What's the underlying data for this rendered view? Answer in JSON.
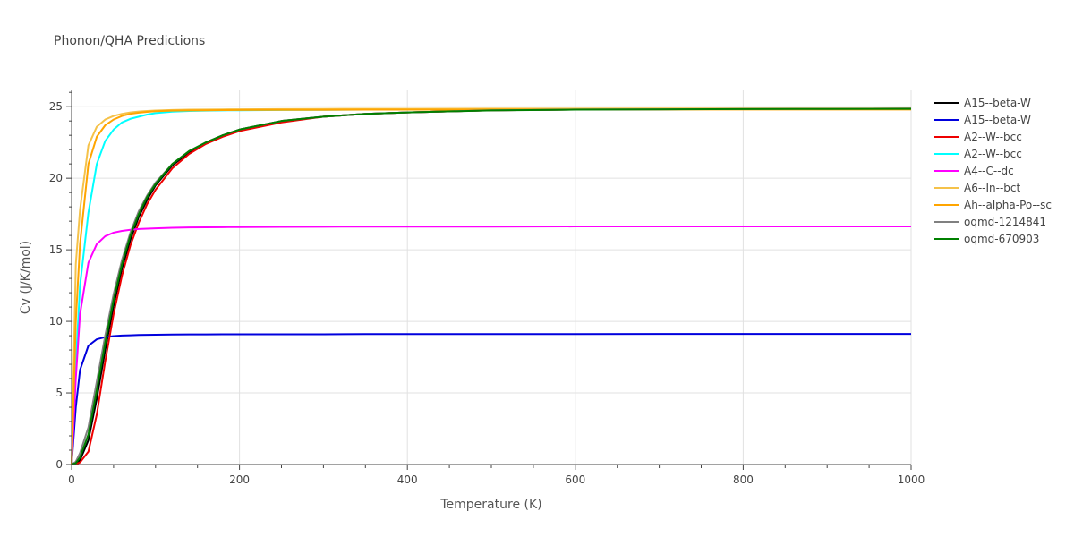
{
  "chart_data": {
    "type": "line",
    "title": "Phonon/QHA Predictions",
    "xlabel": "Temperature (K)",
    "ylabel": "Cv (J/K/mol)",
    "xlim": [
      0,
      1000
    ],
    "ylim": [
      0,
      26.2
    ],
    "x_ticks": [
      0,
      200,
      400,
      600,
      800,
      1000
    ],
    "y_ticks": [
      0,
      5,
      10,
      15,
      20,
      25
    ],
    "grid": true,
    "legend_position": "right",
    "x": [
      0,
      5,
      10,
      20,
      30,
      40,
      50,
      60,
      70,
      80,
      90,
      100,
      120,
      140,
      160,
      180,
      200,
      250,
      300,
      350,
      400,
      500,
      600,
      700,
      800,
      900,
      1000
    ],
    "series": [
      {
        "name": "A15--beta-W",
        "color": "#000000",
        "values": [
          0,
          0.05,
          0.3,
          1.7,
          4.6,
          8.0,
          11.1,
          13.7,
          15.7,
          17.3,
          18.5,
          19.5,
          20.9,
          21.8,
          22.5,
          23.0,
          23.4,
          24.0,
          24.3,
          24.5,
          24.6,
          24.75,
          24.8,
          24.82,
          24.84,
          24.85,
          24.86
        ]
      },
      {
        "name": "A15--beta-W",
        "color": "#0000dd",
        "values": [
          0,
          4.0,
          6.6,
          8.3,
          8.75,
          8.9,
          8.97,
          9.01,
          9.03,
          9.05,
          9.06,
          9.07,
          9.08,
          9.09,
          9.09,
          9.1,
          9.1,
          9.1,
          9.1,
          9.11,
          9.11,
          9.11,
          9.11,
          9.12,
          9.12,
          9.12,
          9.12
        ]
      },
      {
        "name": "A2--W--bcc",
        "color": "#ee0000",
        "values": [
          0,
          0.02,
          0.15,
          0.9,
          3.5,
          7.2,
          10.5,
          13.2,
          15.3,
          16.9,
          18.2,
          19.2,
          20.7,
          21.7,
          22.4,
          22.9,
          23.3,
          23.9,
          24.3,
          24.5,
          24.6,
          24.75,
          24.8,
          24.82,
          24.84,
          24.85,
          24.86
        ]
      },
      {
        "name": "A2--W--bcc",
        "color": "#00ffff",
        "values": [
          0,
          7.0,
          12.5,
          17.6,
          21.0,
          22.6,
          23.4,
          23.9,
          24.15,
          24.3,
          24.45,
          24.55,
          24.65,
          24.7,
          24.72,
          24.74,
          24.75,
          24.77,
          24.78,
          24.79,
          24.8,
          24.81,
          24.82,
          24.83,
          24.84,
          24.85,
          24.86
        ]
      },
      {
        "name": "A4--C--dc",
        "color": "#ff00ff",
        "values": [
          0,
          6.0,
          10.5,
          14.1,
          15.4,
          15.95,
          16.2,
          16.32,
          16.4,
          16.45,
          16.48,
          16.5,
          16.54,
          16.56,
          16.57,
          16.58,
          16.59,
          16.6,
          16.61,
          16.62,
          16.62,
          16.62,
          16.63,
          16.63,
          16.63,
          16.63,
          16.63
        ]
      },
      {
        "name": "A6--In--bct",
        "color": "#f5c24a",
        "values": [
          0,
          14.0,
          17.8,
          22.3,
          23.6,
          24.1,
          24.35,
          24.5,
          24.6,
          24.66,
          24.7,
          24.73,
          24.77,
          24.79,
          24.8,
          24.81,
          24.82,
          24.83,
          24.84,
          24.85,
          24.85,
          24.86,
          24.86,
          24.87,
          24.87,
          24.87,
          24.87
        ]
      },
      {
        "name": "Ah--alpha-Po--sc",
        "color": "#ffa500",
        "values": [
          0,
          10.0,
          15.4,
          21.0,
          22.9,
          23.7,
          24.1,
          24.35,
          24.5,
          24.58,
          24.64,
          24.68,
          24.72,
          24.74,
          24.75,
          24.76,
          24.77,
          24.78,
          24.78,
          24.79,
          24.79,
          24.8,
          24.8,
          24.8,
          24.8,
          24.8,
          24.8
        ]
      },
      {
        "name": "oqmd-1214841",
        "color": "#808080",
        "values": [
          0,
          0.2,
          0.8,
          2.6,
          5.8,
          9.0,
          11.9,
          14.3,
          16.2,
          17.7,
          18.8,
          19.7,
          21.0,
          21.9,
          22.5,
          23.0,
          23.4,
          24.0,
          24.3,
          24.5,
          24.6,
          24.75,
          24.8,
          24.82,
          24.84,
          24.85,
          24.86
        ]
      },
      {
        "name": "oqmd-670903",
        "color": "#008000",
        "values": [
          0,
          0.1,
          0.5,
          2.1,
          5.2,
          8.5,
          11.5,
          14.0,
          16.0,
          17.5,
          18.7,
          19.6,
          21.0,
          21.9,
          22.5,
          23.0,
          23.4,
          24.0,
          24.3,
          24.5,
          24.6,
          24.74,
          24.79,
          24.81,
          24.83,
          24.84,
          24.85
        ]
      }
    ]
  }
}
